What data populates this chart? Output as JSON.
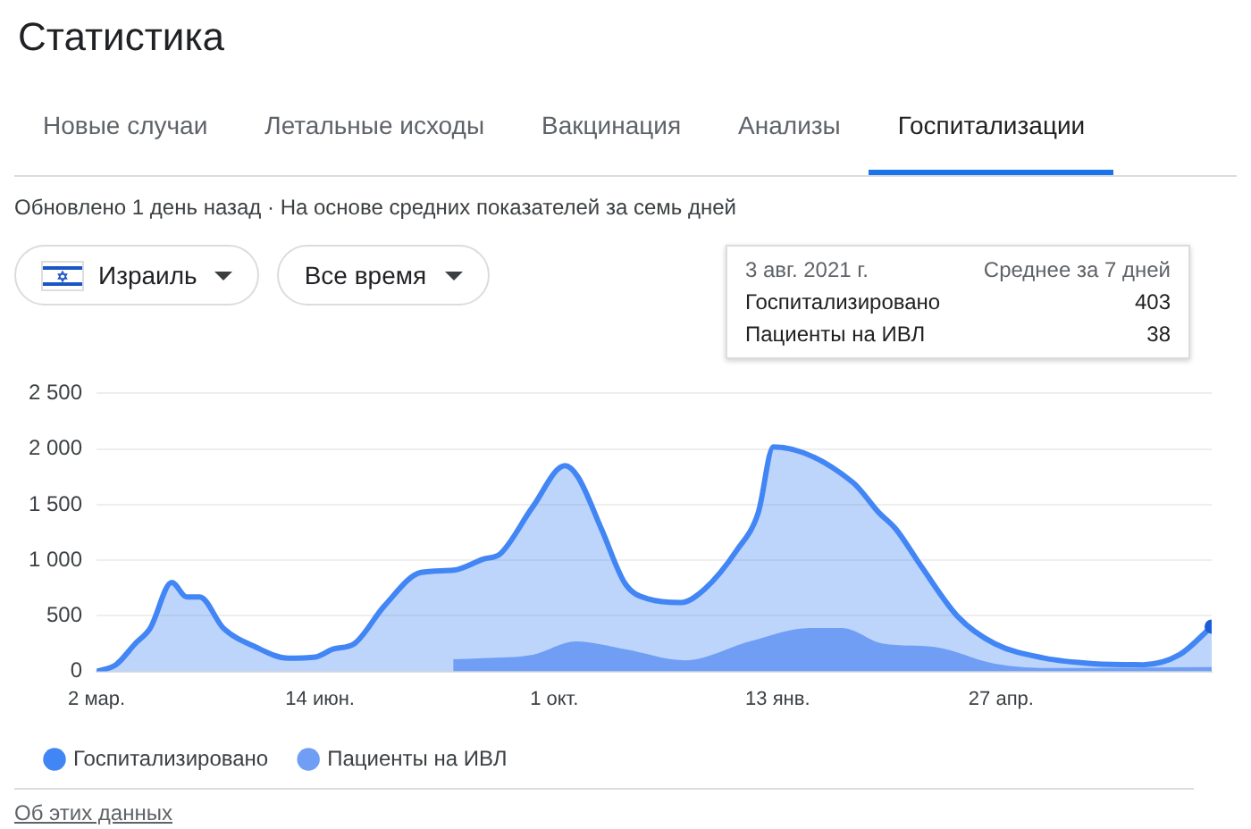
{
  "chart_data": {
    "type": "area",
    "title": "Статистика",
    "annotations": [
      "Новые случаи",
      "Летальные исходы",
      "Вакцинация",
      "Анализы",
      "Госпитализации",
      "Обновлено 1 день назад · На основе средних показателей за семь дней",
      "Израиль",
      "Все время",
      "3 авг. 2021 г.",
      "Среднее за 7 дней",
      "Госпитализировано",
      "403",
      "Пациенты на ИВЛ",
      "38",
      "Об этих данных"
    ],
    "series": [
      {
        "name": "Госпитализировано",
        "color": "#4285f4",
        "x": [
          "2020-03-02",
          "2020-03-11",
          "2020-03-20",
          "2020-03-27",
          "2020-04-06",
          "2020-04-13",
          "2020-04-19",
          "2020-04-30",
          "2020-05-15",
          "2020-05-30",
          "2020-06-12",
          "2020-06-20",
          "2020-06-30",
          "2020-07-14",
          "2020-07-31",
          "2020-08-15",
          "2020-08-29",
          "2020-09-06",
          "2020-09-21",
          "2020-10-06",
          "2020-10-12",
          "2020-10-23",
          "2020-11-03",
          "2020-11-14",
          "2020-11-29",
          "2020-12-10",
          "2020-12-25",
          "2021-01-04",
          "2021-01-11",
          "2021-02-17",
          "2021-03-01",
          "2021-03-09",
          "2021-03-21",
          "2021-04-07",
          "2021-04-24",
          "2021-05-17",
          "2021-06-09",
          "2021-07-02",
          "2021-07-19",
          "2021-08-03"
        ],
        "values": [
          0,
          60,
          250,
          390,
          800,
          670,
          670,
          390,
          220,
          120,
          130,
          200,
          250,
          590,
          890,
          910,
          1010,
          1060,
          1480,
          1850,
          1750,
          1280,
          790,
          650,
          620,
          740,
          1090,
          1430,
          2020,
          1700,
          1430,
          1280,
          940,
          490,
          250,
          120,
          70,
          60,
          150,
          403
        ]
      },
      {
        "name": "Пациенты на ИВЛ",
        "color": "#6f9ef4",
        "x": [
          "2020-08-15",
          "2020-08-29",
          "2020-09-21",
          "2020-10-11",
          "2020-11-03",
          "2020-12-01",
          "2020-12-31",
          "2021-01-28",
          "2021-02-12",
          "2021-03-03",
          "2021-03-27",
          "2021-04-24",
          "2021-05-22",
          "2021-08-03"
        ],
        "values": [
          110,
          120,
          150,
          270,
          200,
          100,
          270,
          390,
          390,
          250,
          220,
          70,
          30,
          38
        ]
      }
    ],
    "xlim": [
      "2020-03-02",
      "2021-08-03"
    ],
    "xticks": [
      {
        "value": "2020-03-02",
        "label": "2 мар."
      },
      {
        "value": "2020-06-14",
        "label": "14 июн."
      },
      {
        "value": "2020-10-01",
        "label": "1 окт."
      },
      {
        "value": "2021-01-13",
        "label": "13 янв."
      },
      {
        "value": "2021-04-27",
        "label": "27 апр."
      }
    ],
    "ylim": [
      0,
      2500
    ],
    "yticks": [
      0,
      500,
      {
        "value": 1000,
        "label": "1 000"
      },
      {
        "value": 1500,
        "label": "1 500"
      },
      {
        "value": 2000,
        "label": "2 000"
      },
      {
        "value": 2500,
        "label": "2 500"
      }
    ],
    "grid": "y",
    "legend": "bottom left"
  }
}
